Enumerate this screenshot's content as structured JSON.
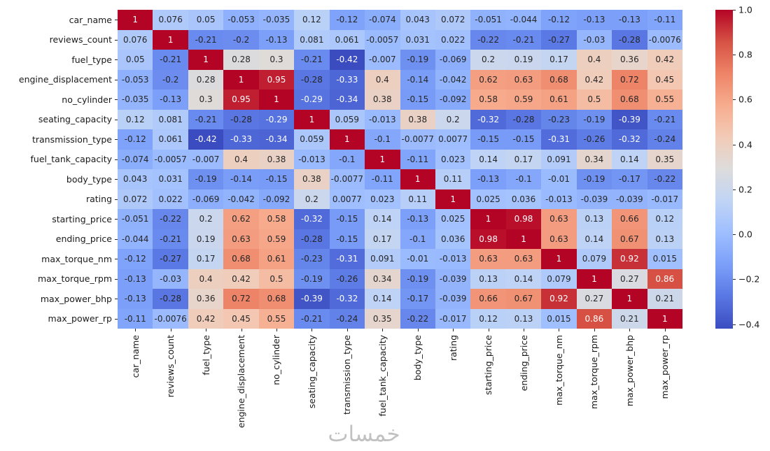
{
  "watermark": {
    "text": "خمسات"
  },
  "colors": {
    "background": "#ffffff",
    "axis_text": "#1a1a1a",
    "cell_text_dark": "#262626",
    "cell_text_light": "#ffffff",
    "coolwarm_stops": [
      "#3b4cc0",
      "#5977e3",
      "#7b9ff9",
      "#9ebeff",
      "#c0d4f5",
      "#dddcdc",
      "#f2cbb7",
      "#f7ac8e",
      "#ee8468",
      "#d65244",
      "#b40426"
    ]
  },
  "chart_data": {
    "type": "heatmap",
    "title": "",
    "colormap": "coolwarm",
    "vmin": -0.42,
    "vmax": 1.0,
    "grid": false,
    "legend_position": "right-colorbar",
    "variables": [
      "car_name",
      "reviews_count",
      "fuel_type",
      "engine_displacement",
      "no_cylinder",
      "seating_capacity",
      "transmission_type",
      "fuel_tank_capacity",
      "body_type",
      "rating",
      "starting_price",
      "ending_price",
      "max_torque_nm",
      "max_torque_rpm",
      "max_power_bhp",
      "max_power_rp"
    ],
    "matrix": [
      [
        1,
        0.076,
        0.05,
        -0.053,
        -0.035,
        0.12,
        -0.12,
        -0.074,
        0.043,
        0.072,
        -0.051,
        -0.044,
        -0.12,
        -0.13,
        -0.13,
        -0.11
      ],
      [
        0.076,
        1,
        -0.21,
        -0.2,
        -0.13,
        0.081,
        0.061,
        -0.0057,
        0.031,
        0.022,
        -0.22,
        -0.21,
        -0.27,
        -0.03,
        -0.28,
        -0.0076
      ],
      [
        0.05,
        -0.21,
        1,
        0.28,
        0.3,
        -0.21,
        -0.42,
        -0.007,
        -0.19,
        -0.069,
        0.2,
        0.19,
        0.17,
        0.4,
        0.36,
        0.42
      ],
      [
        -0.053,
        -0.2,
        0.28,
        1,
        0.95,
        -0.28,
        -0.33,
        0.4,
        -0.14,
        -0.042,
        0.62,
        0.63,
        0.68,
        0.42,
        0.72,
        0.45
      ],
      [
        -0.035,
        -0.13,
        0.3,
        0.95,
        1,
        -0.29,
        -0.34,
        0.38,
        -0.15,
        -0.092,
        0.58,
        0.59,
        0.61,
        0.5,
        0.68,
        0.55
      ],
      [
        0.12,
        0.081,
        -0.21,
        -0.28,
        -0.29,
        1,
        0.059,
        -0.013,
        0.38,
        0.2,
        -0.32,
        -0.28,
        -0.23,
        -0.19,
        -0.39,
        -0.21
      ],
      [
        -0.12,
        0.061,
        -0.42,
        -0.33,
        -0.34,
        0.059,
        1,
        -0.1,
        -0.0077,
        0.0077,
        -0.15,
        -0.15,
        -0.31,
        -0.26,
        -0.32,
        -0.24
      ],
      [
        -0.074,
        -0.0057,
        -0.007,
        0.4,
        0.38,
        -0.013,
        -0.1,
        1,
        -0.11,
        0.023,
        0.14,
        0.17,
        0.091,
        0.34,
        0.14,
        0.35
      ],
      [
        0.043,
        0.031,
        -0.19,
        -0.14,
        -0.15,
        0.38,
        -0.0077,
        -0.11,
        1,
        0.11,
        -0.13,
        -0.1,
        -0.01,
        -0.19,
        -0.17,
        -0.22
      ],
      [
        0.072,
        0.022,
        -0.069,
        -0.042,
        -0.092,
        0.2,
        0.0077,
        0.023,
        0.11,
        1,
        0.025,
        0.036,
        -0.013,
        -0.039,
        -0.039,
        -0.017
      ],
      [
        -0.051,
        -0.22,
        0.2,
        0.62,
        0.58,
        -0.32,
        -0.15,
        0.14,
        -0.13,
        0.025,
        1,
        0.98,
        0.63,
        0.13,
        0.66,
        0.12
      ],
      [
        -0.044,
        -0.21,
        0.19,
        0.63,
        0.59,
        -0.28,
        -0.15,
        0.17,
        -0.1,
        0.036,
        0.98,
        1,
        0.63,
        0.14,
        0.67,
        0.13
      ],
      [
        -0.12,
        -0.27,
        0.17,
        0.68,
        0.61,
        -0.23,
        -0.31,
        0.091,
        -0.01,
        -0.013,
        0.63,
        0.63,
        1,
        0.079,
        0.92,
        0.015
      ],
      [
        -0.13,
        -0.03,
        0.4,
        0.42,
        0.5,
        -0.19,
        -0.26,
        0.34,
        -0.19,
        -0.039,
        0.13,
        0.14,
        0.079,
        1,
        0.27,
        0.86
      ],
      [
        -0.13,
        -0.28,
        0.36,
        0.72,
        0.68,
        -0.39,
        -0.32,
        0.14,
        -0.17,
        -0.039,
        0.66,
        0.67,
        0.92,
        0.27,
        1,
        0.21
      ],
      [
        -0.11,
        -0.0076,
        0.42,
        0.45,
        0.55,
        -0.21,
        -0.24,
        0.35,
        -0.22,
        -0.017,
        0.12,
        0.13,
        0.015,
        0.86,
        0.21,
        1
      ]
    ],
    "colorbar_ticks": [
      {
        "label": "1.0",
        "value": 1.0
      },
      {
        "label": "0.8",
        "value": 0.8
      },
      {
        "label": "0.6",
        "value": 0.6
      },
      {
        "label": "0.4",
        "value": 0.4
      },
      {
        "label": "0.2",
        "value": 0.2
      },
      {
        "label": "0.0",
        "value": 0.0
      },
      {
        "label": "−0.2",
        "value": -0.2
      },
      {
        "label": "−0.4",
        "value": -0.4
      }
    ]
  }
}
